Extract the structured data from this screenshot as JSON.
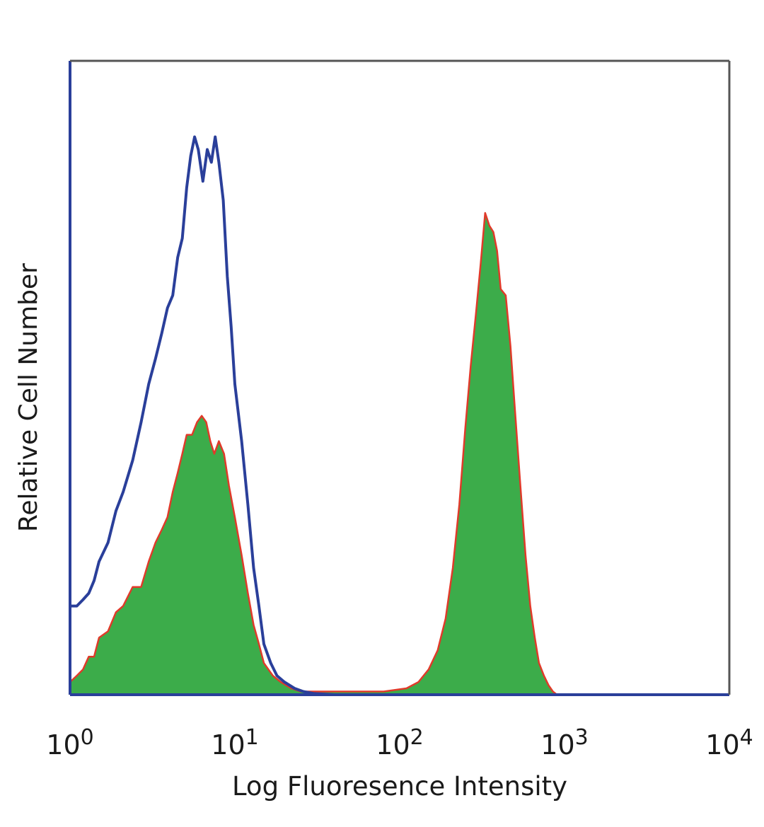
{
  "chart_data": {
    "type": "area",
    "xlabel": "Log Fluoresence Intensity",
    "ylabel": "Relative Cell Number",
    "xscale": "log",
    "xlim": [
      1,
      10000
    ],
    "ylim": [
      0,
      100
    ],
    "grid": false,
    "legend": "none",
    "x_ticks": [
      {
        "value": 1,
        "base": "10",
        "exp": "0"
      },
      {
        "value": 10,
        "base": "10",
        "exp": "1"
      },
      {
        "value": 100,
        "base": "10",
        "exp": "2"
      },
      {
        "value": 1000,
        "base": "10",
        "exp": "3"
      },
      {
        "value": 10000,
        "base": "10",
        "exp": "4"
      }
    ],
    "series": [
      {
        "style": "outline",
        "color": "#2a3f9a",
        "points": [
          [
            1.0,
            14
          ],
          [
            1.1,
            14
          ],
          [
            1.2,
            15
          ],
          [
            1.3,
            16
          ],
          [
            1.4,
            18
          ],
          [
            1.5,
            21
          ],
          [
            1.7,
            24
          ],
          [
            1.9,
            29
          ],
          [
            2.1,
            32
          ],
          [
            2.4,
            37
          ],
          [
            2.7,
            43
          ],
          [
            3.0,
            49
          ],
          [
            3.3,
            53
          ],
          [
            3.6,
            57
          ],
          [
            3.9,
            61
          ],
          [
            4.2,
            63
          ],
          [
            4.5,
            69
          ],
          [
            4.8,
            72
          ],
          [
            5.1,
            80
          ],
          [
            5.4,
            85
          ],
          [
            5.7,
            88
          ],
          [
            6.0,
            86
          ],
          [
            6.4,
            81
          ],
          [
            6.8,
            86
          ],
          [
            7.2,
            84
          ],
          [
            7.6,
            88
          ],
          [
            8.0,
            84
          ],
          [
            8.5,
            78
          ],
          [
            9.0,
            66
          ],
          [
            9.5,
            58
          ],
          [
            10.0,
            49
          ],
          [
            11.0,
            40
          ],
          [
            12.0,
            30
          ],
          [
            13.0,
            20
          ],
          [
            14.0,
            14
          ],
          [
            15.0,
            8
          ],
          [
            16.5,
            5
          ],
          [
            18.0,
            3
          ],
          [
            20.0,
            2
          ],
          [
            23.0,
            1
          ],
          [
            26.0,
            0.5
          ],
          [
            30.0,
            0.2
          ],
          [
            40.0,
            0
          ],
          [
            100.0,
            0
          ]
        ]
      },
      {
        "style": "filled",
        "color": "#3cac4a",
        "edge_color": "#e03a2a",
        "points": [
          [
            1.0,
            2
          ],
          [
            1.1,
            3
          ],
          [
            1.2,
            4
          ],
          [
            1.3,
            6
          ],
          [
            1.4,
            6
          ],
          [
            1.5,
            9
          ],
          [
            1.7,
            10
          ],
          [
            1.9,
            13
          ],
          [
            2.1,
            14
          ],
          [
            2.4,
            17
          ],
          [
            2.7,
            17
          ],
          [
            3.0,
            21
          ],
          [
            3.3,
            24
          ],
          [
            3.6,
            26
          ],
          [
            3.9,
            28
          ],
          [
            4.2,
            32
          ],
          [
            4.5,
            35
          ],
          [
            4.8,
            38
          ],
          [
            5.1,
            41
          ],
          [
            5.5,
            41
          ],
          [
            5.9,
            43
          ],
          [
            6.3,
            44
          ],
          [
            6.7,
            43
          ],
          [
            7.1,
            40
          ],
          [
            7.5,
            38
          ],
          [
            8.0,
            40
          ],
          [
            8.6,
            38
          ],
          [
            9.2,
            33
          ],
          [
            10.0,
            28
          ],
          [
            11.0,
            22
          ],
          [
            12.0,
            16
          ],
          [
            13.0,
            11
          ],
          [
            14.0,
            8
          ],
          [
            15.0,
            5
          ],
          [
            17.0,
            3
          ],
          [
            19.0,
            2
          ],
          [
            22.0,
            1
          ],
          [
            25.0,
            0.5
          ],
          [
            30.0,
            0.5
          ],
          [
            40.0,
            0.5
          ],
          [
            60.0,
            0.5
          ],
          [
            80.0,
            0.5
          ],
          [
            110.0,
            1
          ],
          [
            130.0,
            2
          ],
          [
            150.0,
            4
          ],
          [
            170.0,
            7
          ],
          [
            190.0,
            12
          ],
          [
            210.0,
            20
          ],
          [
            230.0,
            30
          ],
          [
            250.0,
            42
          ],
          [
            270.0,
            52
          ],
          [
            290.0,
            60
          ],
          [
            310.0,
            68
          ],
          [
            330.0,
            76
          ],
          [
            350.0,
            74
          ],
          [
            370.0,
            73
          ],
          [
            390.0,
            70
          ],
          [
            410.0,
            64
          ],
          [
            440.0,
            63
          ],
          [
            470.0,
            55
          ],
          [
            500.0,
            45
          ],
          [
            540.0,
            33
          ],
          [
            580.0,
            22
          ],
          [
            620.0,
            14
          ],
          [
            660.0,
            9
          ],
          [
            700.0,
            5
          ],
          [
            750.0,
            3
          ],
          [
            800.0,
            1.5
          ],
          [
            850.0,
            0.5
          ],
          [
            900.0,
            0
          ]
        ]
      }
    ]
  }
}
